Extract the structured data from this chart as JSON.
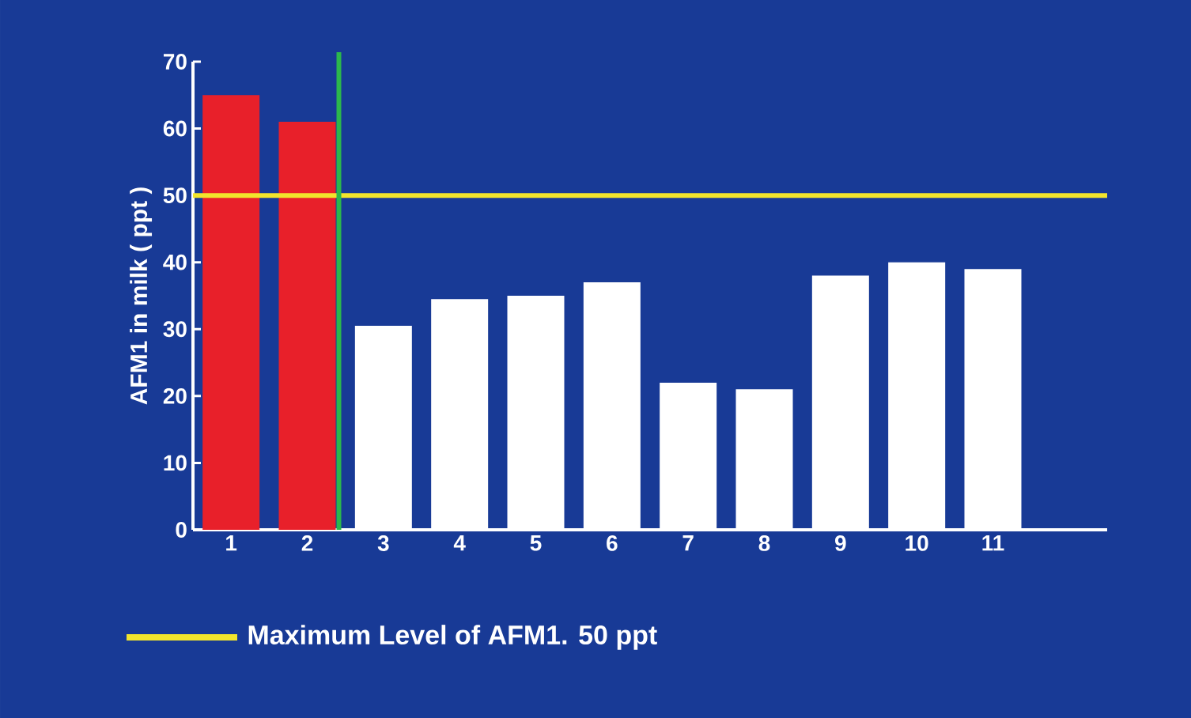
{
  "chart_data": {
    "type": "bar",
    "ylabel": "AFM1 in milk  ( ppt )",
    "categories": [
      "1",
      "2",
      "3",
      "4",
      "5",
      "6",
      "7",
      "8",
      "9",
      "10",
      "11"
    ],
    "values": [
      65,
      61,
      30.5,
      34.5,
      35,
      37,
      22,
      21,
      38,
      40,
      39
    ],
    "colors": [
      "#e8202a",
      "#e8202a",
      "#ffffff",
      "#ffffff",
      "#ffffff",
      "#ffffff",
      "#ffffff",
      "#ffffff",
      "#ffffff",
      "#ffffff",
      "#ffffff"
    ],
    "ylim": [
      0,
      70
    ],
    "yticks": [
      0,
      10,
      20,
      30,
      40,
      50,
      60,
      70
    ],
    "ref_lines": [
      {
        "axis": "y",
        "value": 50,
        "label": "Maximum Level  of AFM1. 50 ppt",
        "color": "#f2e52c"
      },
      {
        "axis": "x",
        "value": "2",
        "color": "#2cb84c"
      }
    ],
    "legend": "bottom"
  }
}
